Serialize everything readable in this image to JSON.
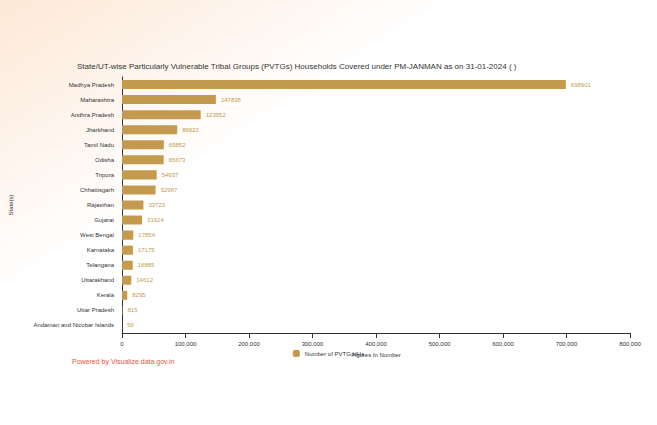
{
  "chart_data": {
    "type": "bar",
    "orientation": "horizontal",
    "title": "State/UT-wise Particularly Vulnerable Tribal Groups (PVTGs) Households Covered under PM-JANMAN as on 31-01-2024 ( )",
    "xlabel": "Figures In Number",
    "ylabel": "State(s)",
    "footer": "Powered by Visualize.data.gov.in",
    "categories": [
      "Madhya Pradesh",
      "Maharashtra",
      "Andhra Pradesh",
      "Jharkhand",
      "Tamil Nadu",
      "Odisha",
      "Tripura",
      "Chhattisgarh",
      "Rajasthan",
      "Gujarat",
      "West Bengal",
      "Karnataka",
      "Telangana",
      "Uttarakhand",
      "Kerala",
      "Uttar Pradesh",
      "Andaman and Nicobar Islands"
    ],
    "series": [
      {
        "name": "Number of PVTG HHs",
        "color": "#c49a4f",
        "values": [
          698901,
          147836,
          123952,
          86922,
          65852,
          65673,
          54637,
          52967,
          33723,
          31624,
          17854,
          17175,
          16885,
          14612,
          8295,
          815,
          59
        ]
      }
    ],
    "xlim": [
      0,
      800000
    ],
    "xticks": [
      0,
      100000,
      200000,
      300000,
      400000,
      500000,
      600000,
      700000,
      800000
    ],
    "grid": false,
    "legend": "bottom",
    "data_labels": true
  }
}
